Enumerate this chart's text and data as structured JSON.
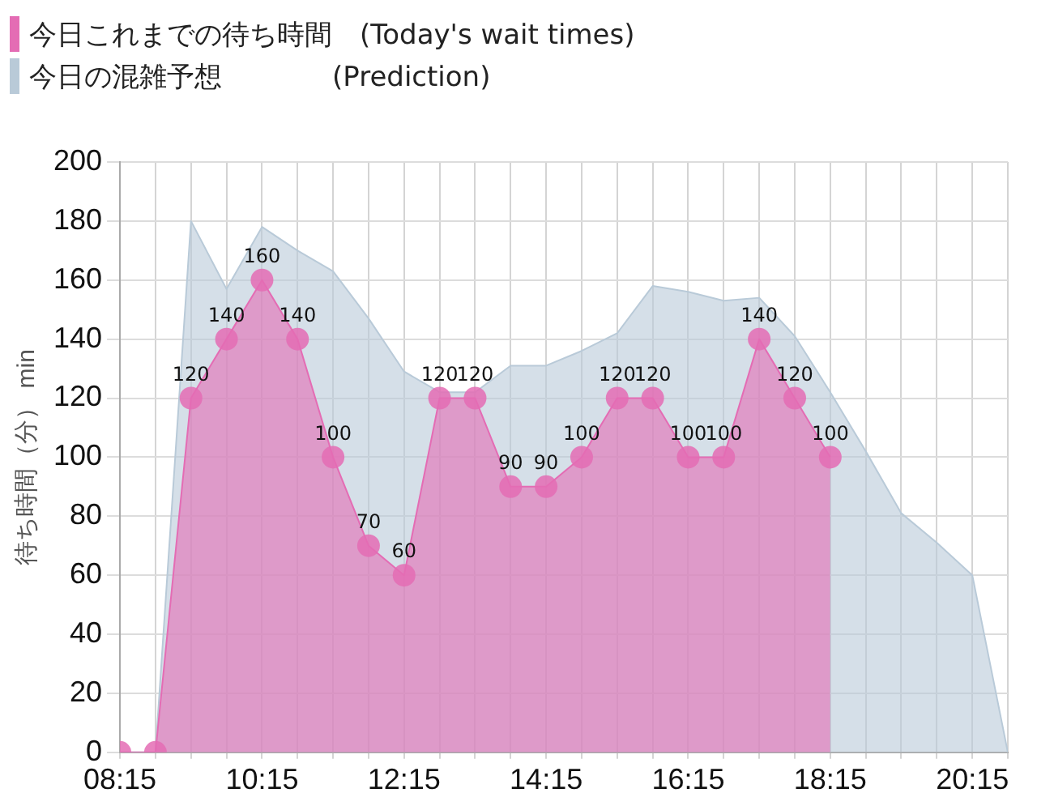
{
  "chart_data": {
    "type": "area",
    "ylabel": "待ち時間（分） min",
    "x": [
      8.25,
      8.75,
      9.25,
      9.75,
      10.25,
      10.75,
      11.25,
      11.75,
      12.25,
      12.75,
      13.25,
      13.75,
      14.25,
      14.75,
      15.25,
      15.75,
      16.25,
      16.75,
      17.25,
      17.75,
      18.25,
      18.75,
      19.25,
      19.75,
      20.25,
      20.75
    ],
    "series": [
      {
        "name": "今日の混雑予想　　　　(Prediction)",
        "color": "#b9cad8",
        "marker": "none",
        "values": [
          0,
          0,
          180,
          157,
          178,
          170,
          163,
          147,
          129,
          122,
          122,
          131,
          131,
          136,
          142,
          158,
          156,
          153,
          154,
          141,
          122,
          102,
          81,
          71,
          60,
          0
        ]
      },
      {
        "name": "今日これまでの待ち時間　(Today's wait times)",
        "color": "#e46cb4",
        "marker": "circle",
        "values": [
          0,
          0,
          120,
          140,
          160,
          140,
          100,
          70,
          60,
          120,
          120,
          90,
          90,
          100,
          120,
          120,
          100,
          100,
          140,
          120,
          100,
          null,
          null,
          null,
          null,
          null
        ],
        "value_labels": [
          null,
          null,
          "120",
          "140",
          "160",
          "140",
          "100",
          "70",
          "60",
          "120",
          "120",
          "90",
          "90",
          "100",
          "120",
          "120",
          "100",
          "100",
          "140",
          "120",
          "100",
          null,
          null,
          null,
          null,
          null
        ]
      }
    ],
    "xlim": [
      8.25,
      20.75
    ],
    "xticks": [
      {
        "value": 8.25,
        "label": "08:15"
      },
      {
        "value": 8.75,
        "label": null
      },
      {
        "value": 9.25,
        "label": null
      },
      {
        "value": 9.75,
        "label": null
      },
      {
        "value": 10.25,
        "label": "10:15"
      },
      {
        "value": 10.75,
        "label": null
      },
      {
        "value": 11.25,
        "label": null
      },
      {
        "value": 11.75,
        "label": null
      },
      {
        "value": 12.25,
        "label": "12:15"
      },
      {
        "value": 12.75,
        "label": null
      },
      {
        "value": 13.25,
        "label": null
      },
      {
        "value": 13.75,
        "label": null
      },
      {
        "value": 14.25,
        "label": "14:15"
      },
      {
        "value": 14.75,
        "label": null
      },
      {
        "value": 15.25,
        "label": null
      },
      {
        "value": 15.75,
        "label": null
      },
      {
        "value": 16.25,
        "label": "16:15"
      },
      {
        "value": 16.75,
        "label": null
      },
      {
        "value": 17.25,
        "label": null
      },
      {
        "value": 17.75,
        "label": null
      },
      {
        "value": 18.25,
        "label": "18:15"
      },
      {
        "value": 18.75,
        "label": null
      },
      {
        "value": 19.25,
        "label": null
      },
      {
        "value": 19.75,
        "label": null
      },
      {
        "value": 20.25,
        "label": "20:15"
      },
      {
        "value": 20.75,
        "label": null
      }
    ],
    "ylim": [
      0,
      200
    ],
    "yticks": [
      0,
      20,
      40,
      60,
      80,
      100,
      120,
      140,
      160,
      180,
      200
    ],
    "grid": true,
    "legend": "top left"
  }
}
